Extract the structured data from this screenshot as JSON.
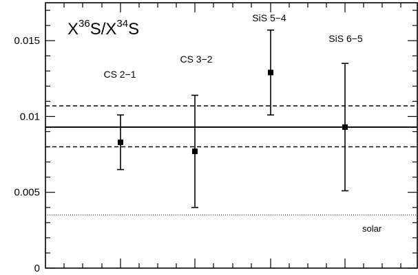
{
  "chart_data": {
    "type": "scatter",
    "title": {
      "main": "X",
      "sup1": "36",
      "mid": "S/X",
      "sup2": "34",
      "end": "S"
    },
    "ylim": [
      0,
      0.0175
    ],
    "y_ticks": [
      "0",
      "0.005",
      "0.01",
      "0.015"
    ],
    "y_tick_values": [
      0,
      0.005,
      0.01,
      0.015
    ],
    "points": [
      {
        "label": "CS 2−1",
        "value": 0.0083,
        "err_low": 0.0065,
        "err_high": 0.0101
      },
      {
        "label": "CS 3−2",
        "value": 0.0077,
        "err_low": 0.004,
        "err_high": 0.0114
      },
      {
        "label": "SiS 5−4",
        "value": 0.0129,
        "err_low": 0.0101,
        "err_high": 0.0157
      },
      {
        "label": "SiS 6−5",
        "value": 0.0093,
        "err_low": 0.0051,
        "err_high": 0.0135
      }
    ],
    "reference_lines": [
      {
        "name": "mean",
        "value": 0.0093,
        "style": "solid"
      },
      {
        "name": "mean-upper",
        "value": 0.0107,
        "style": "dashed"
      },
      {
        "name": "mean-lower",
        "value": 0.008,
        "style": "dashed"
      },
      {
        "name": "solar",
        "value": 0.0035,
        "style": "dotted"
      }
    ],
    "annotation": "solar",
    "grid": false
  }
}
